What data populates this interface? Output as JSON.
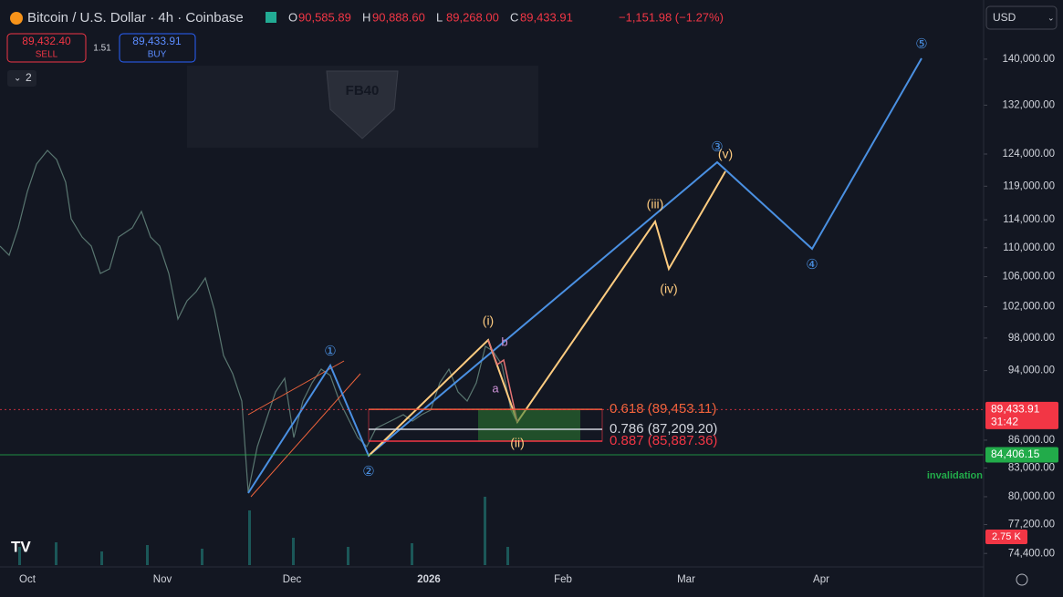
{
  "header": {
    "symbol": "Bitcoin / U.S. Dollar · 4h · Coinbase",
    "ohlc": [
      {
        "key": "O",
        "value": "90,585.89"
      },
      {
        "key": "H",
        "value": "90,888.60"
      },
      {
        "key": "L",
        "value": "89,268.00"
      },
      {
        "key": "C",
        "value": "89,433.91"
      }
    ],
    "change": "−1,151.98 (−1.27%)"
  },
  "trade": {
    "sell_price": "89,432.40",
    "sell": "SELL",
    "spread": "1.51",
    "buy_price": "89,433.91",
    "buy": "BUY"
  },
  "indicators_count": "2",
  "currency": "USD",
  "watermark": "FB40",
  "price_axis": {
    "log": true,
    "ylim": [
      73300,
      151000
    ],
    "yticks": [
      {
        "value": 140000,
        "label": "140,000.00"
      },
      {
        "value": 132000,
        "label": "132,000.00"
      },
      {
        "value": 124000,
        "label": "124,000.00"
      },
      {
        "value": 119000,
        "label": "119,000.00"
      },
      {
        "value": 114000,
        "label": "114,000.00"
      },
      {
        "value": 110000,
        "label": "110,000.00"
      },
      {
        "value": 106000,
        "label": "106,000.00"
      },
      {
        "value": 102000,
        "label": "102,000.00"
      },
      {
        "value": 98000,
        "label": "98,000.00"
      },
      {
        "value": 94000,
        "label": "94,000.00"
      },
      {
        "value": 86000,
        "label": "86,000.00"
      },
      {
        "value": 83000,
        "label": "83,000.00"
      },
      {
        "value": 80000,
        "label": "80,000.00"
      },
      {
        "value": 77200,
        "label": "77,200.00"
      },
      {
        "value": 74400,
        "label": "74,400.00"
      }
    ]
  },
  "time_axis": {
    "labels": [
      "Oct",
      "Nov",
      "Dec",
      "2026",
      "Feb",
      "Mar",
      "Apr"
    ]
  },
  "waves": {
    "primary": [
      "①",
      "②",
      "③",
      "④",
      "⑤"
    ],
    "minor": [
      "(i)",
      "(ii)",
      "(iii)",
      "(iv)",
      "(v)"
    ],
    "correction": [
      "a",
      "b"
    ]
  },
  "fib_levels": [
    {
      "label": "0.618 (89,453.11)",
      "value": 89453.11,
      "color": "#f0643c"
    },
    {
      "label": "0.786 (87,209.20)",
      "value": 87209.2,
      "color": "#d1d4dc"
    },
    {
      "label": "0.887 (85,887.36)",
      "value": 85887.36,
      "color": "#f23645"
    }
  ],
  "price_tags": [
    {
      "label": "89,433.91",
      "value": 89433.91,
      "countdown": "31:42",
      "color": "#f23645"
    },
    {
      "label": "84,406.15",
      "value": 84406.15,
      "color": "#22ab4a"
    }
  ],
  "invalidation": "invalidation",
  "volume_tag": "2.75 K"
}
